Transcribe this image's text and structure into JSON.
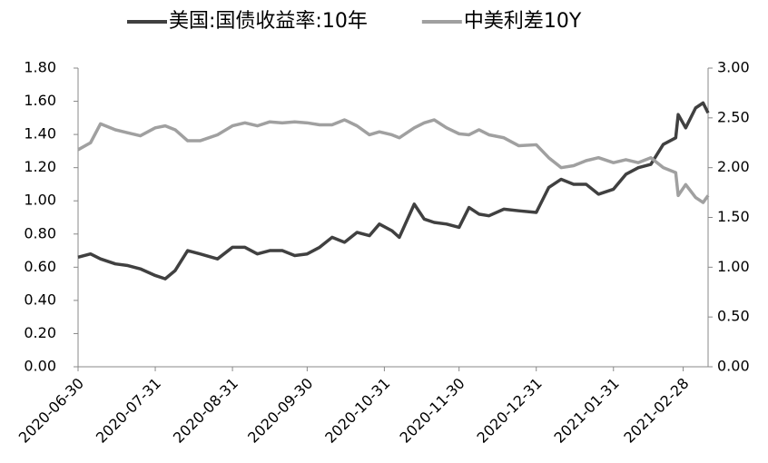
{
  "chart_data": {
    "type": "line",
    "x": [
      "2020-06-30",
      "2020-07-05",
      "2020-07-09",
      "2020-07-15",
      "2020-07-20",
      "2020-07-25",
      "2020-07-31",
      "2020-08-04",
      "2020-08-08",
      "2020-08-13",
      "2020-08-18",
      "2020-08-25",
      "2020-08-31",
      "2020-09-05",
      "2020-09-10",
      "2020-09-15",
      "2020-09-20",
      "2020-09-25",
      "2020-09-30",
      "2020-10-05",
      "2020-10-10",
      "2020-10-15",
      "2020-10-20",
      "2020-10-25",
      "2020-10-29",
      "2020-11-03",
      "2020-11-06",
      "2020-11-12",
      "2020-11-16",
      "2020-11-20",
      "2020-11-25",
      "2020-11-30",
      "2020-12-04",
      "2020-12-08",
      "2020-12-12",
      "2020-12-18",
      "2020-12-24",
      "2020-12-31",
      "2021-01-05",
      "2021-01-10",
      "2021-01-15",
      "2021-01-20",
      "2021-01-25",
      "2021-01-31",
      "2021-02-05",
      "2021-02-10",
      "2021-02-15",
      "2021-02-20",
      "2021-02-25",
      "2021-02-26",
      "2021-03-01",
      "2021-03-05",
      "2021-03-08",
      "2021-03-10"
    ],
    "series": [
      {
        "name": "美国:国债收益率:10年",
        "color": "#404040",
        "values": [
          0.66,
          0.68,
          0.65,
          0.62,
          0.61,
          0.59,
          0.55,
          0.53,
          0.58,
          0.7,
          0.68,
          0.65,
          0.72,
          0.72,
          0.68,
          0.7,
          0.7,
          0.67,
          0.68,
          0.72,
          0.78,
          0.75,
          0.81,
          0.79,
          0.86,
          0.82,
          0.78,
          0.98,
          0.89,
          0.87,
          0.86,
          0.84,
          0.96,
          0.92,
          0.91,
          0.95,
          0.94,
          0.93,
          1.08,
          1.13,
          1.1,
          1.1,
          1.04,
          1.07,
          1.16,
          1.2,
          1.22,
          1.34,
          1.38,
          1.52,
          1.44,
          1.56,
          1.59,
          1.53
        ]
      },
      {
        "name": "中美利差10Y",
        "color": "#a0a0a0",
        "axis": "y2",
        "values": [
          2.18,
          2.25,
          2.44,
          2.38,
          2.35,
          2.32,
          2.4,
          2.42,
          2.38,
          2.27,
          2.27,
          2.33,
          2.42,
          2.45,
          2.42,
          2.46,
          2.45,
          2.46,
          2.45,
          2.43,
          2.43,
          2.48,
          2.42,
          2.33,
          2.36,
          2.33,
          2.3,
          2.4,
          2.45,
          2.48,
          2.4,
          2.34,
          2.33,
          2.38,
          2.33,
          2.3,
          2.22,
          2.23,
          2.1,
          2.0,
          2.02,
          2.07,
          2.1,
          2.05,
          2.08,
          2.05,
          2.1,
          2.0,
          1.95,
          1.72,
          1.83,
          1.7,
          1.65,
          1.72
        ]
      }
    ],
    "xlim": [
      "2020-06-30",
      "2021-03-10"
    ],
    "xticks": [
      "2020-06-30",
      "2020-07-31",
      "2020-08-31",
      "2020-09-30",
      "2020-10-31",
      "2020-11-30",
      "2020-12-31",
      "2021-01-31",
      "2021-02-28"
    ],
    "ylim": [
      0,
      1.8
    ],
    "yticks": [
      {
        "value": 0,
        "label": "0.00"
      },
      {
        "value": 0.2,
        "label": "0.20"
      },
      {
        "value": 0.4,
        "label": "0.40"
      },
      {
        "value": 0.6,
        "label": "0.60"
      },
      {
        "value": 0.8,
        "label": "0.80"
      },
      {
        "value": 1,
        "label": "1.00"
      },
      {
        "value": 1.2,
        "label": "1.20"
      },
      {
        "value": 1.4,
        "label": "1.40"
      },
      {
        "value": 1.6,
        "label": "1.60"
      },
      {
        "value": 1.8,
        "label": "1.80"
      }
    ],
    "y2lim": [
      0,
      3
    ],
    "y2ticks": [
      {
        "value": 0,
        "label": "0.00"
      },
      {
        "value": 0.5,
        "label": "0.50"
      },
      {
        "value": 1,
        "label": "1.00"
      },
      {
        "value": 1.5,
        "label": "1.50"
      },
      {
        "value": 2,
        "label": "2.00"
      },
      {
        "value": 2.5,
        "label": "2.50"
      },
      {
        "value": 3,
        "label": "3.00"
      }
    ],
    "legend": "top",
    "grid": false
  }
}
